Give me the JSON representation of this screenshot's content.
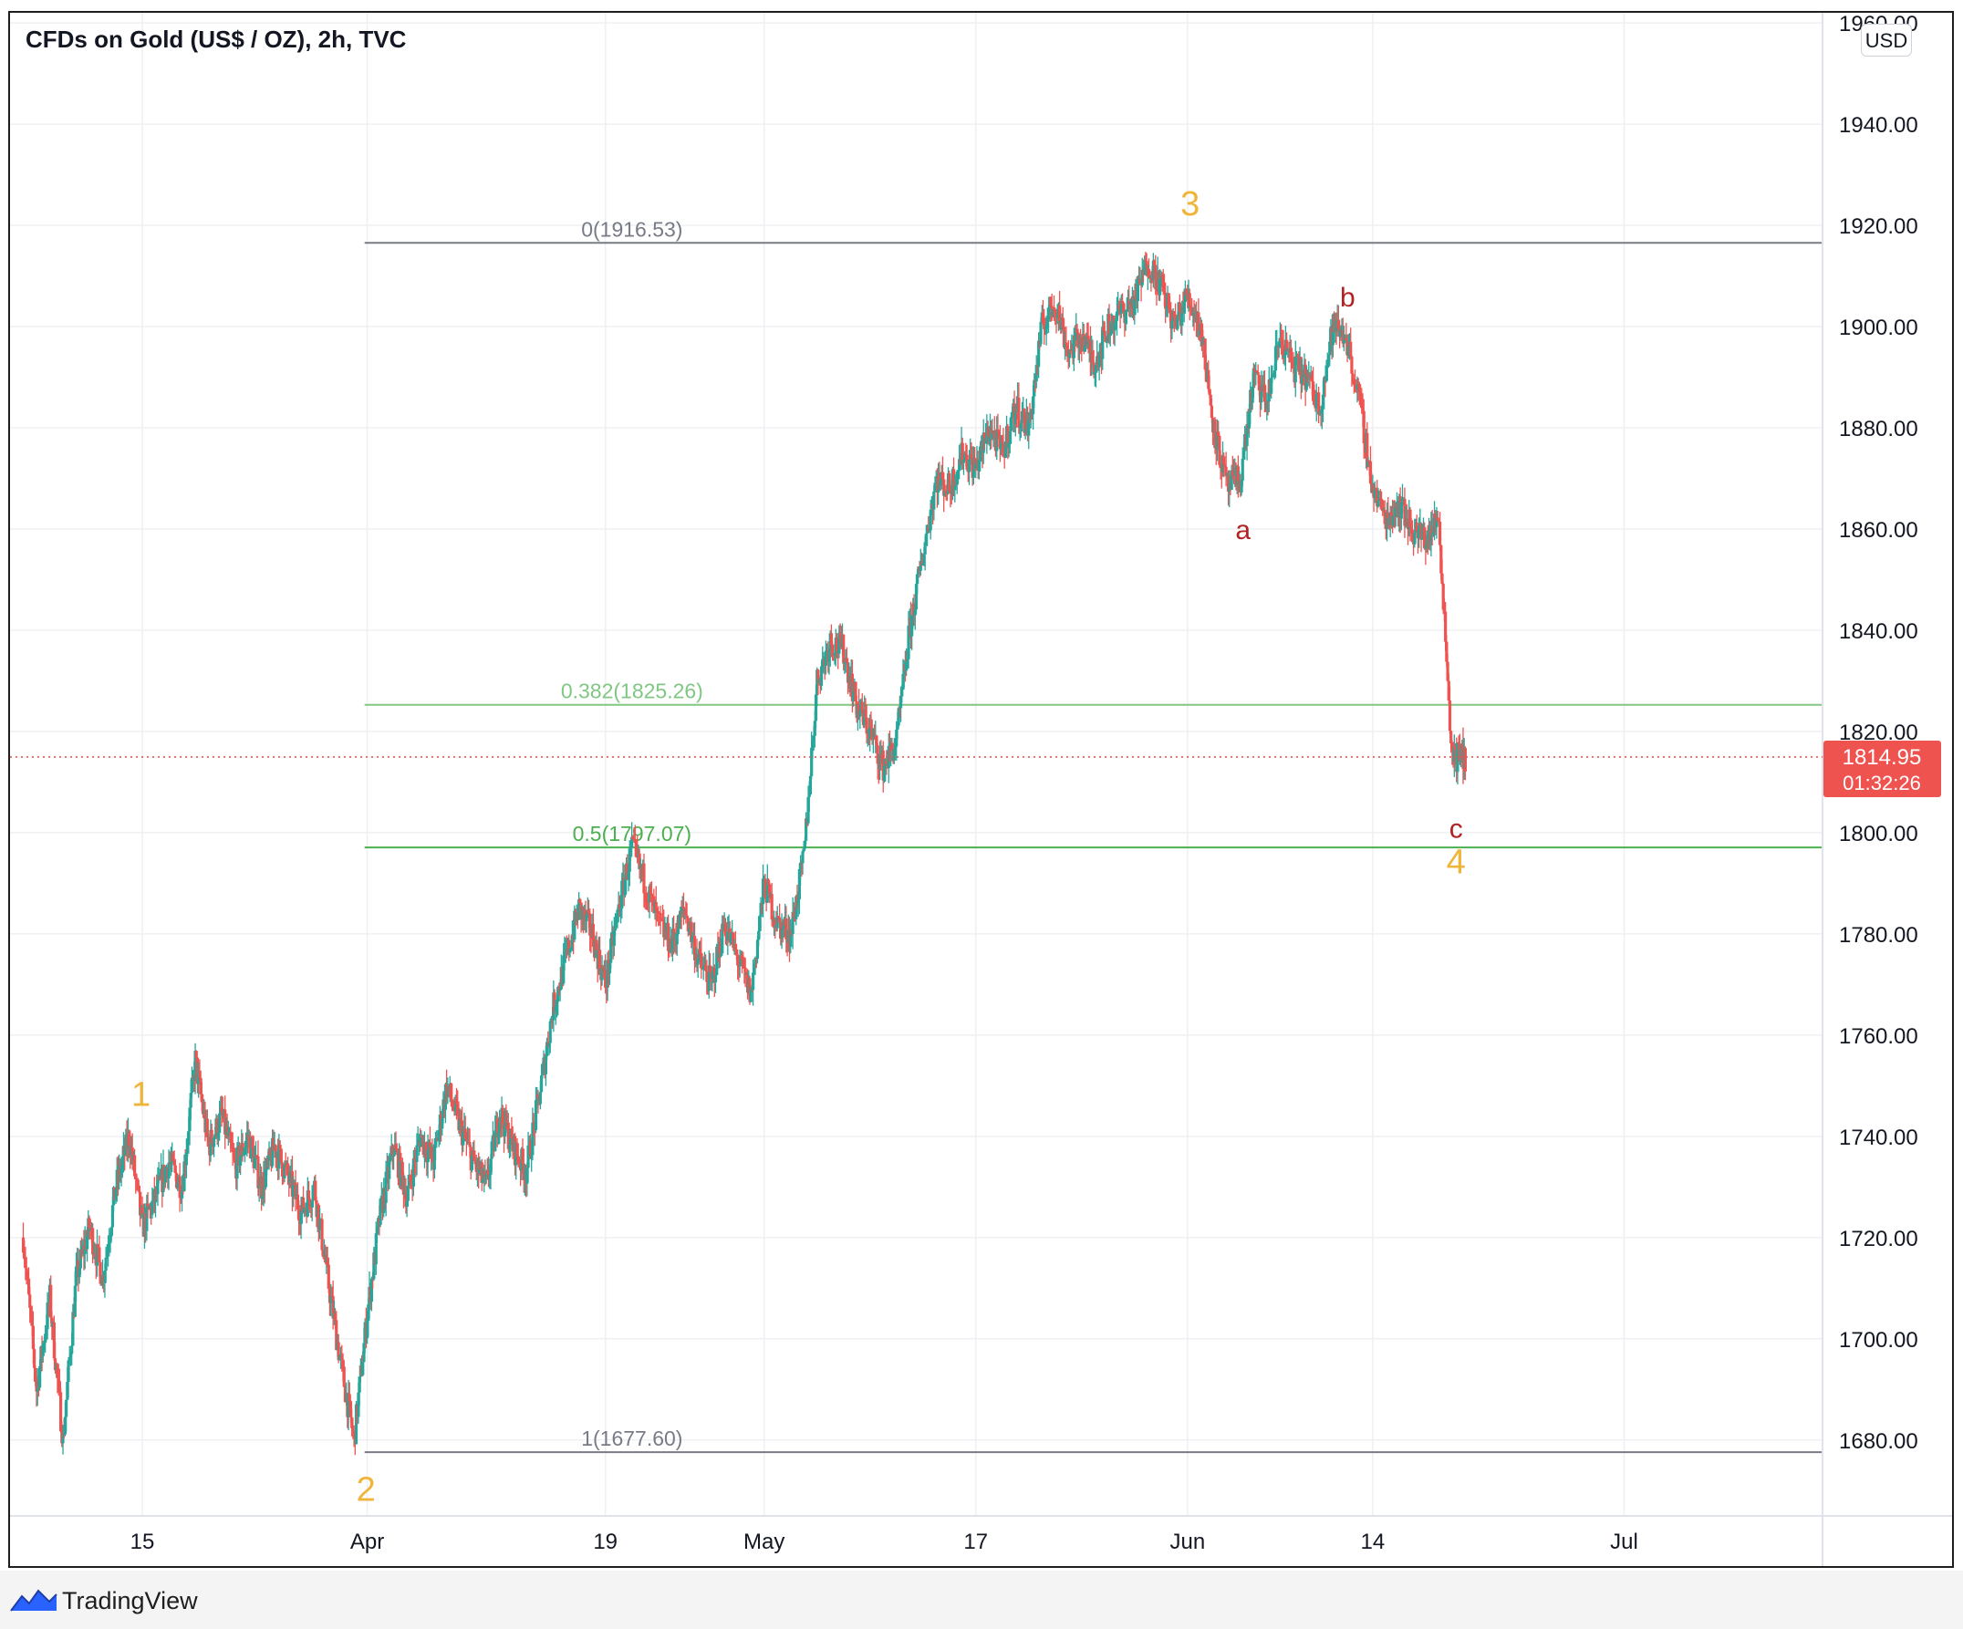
{
  "header": {
    "title": "CFDs on Gold (US$ / OZ), 2h, TVC",
    "currency_button": "USD"
  },
  "footer": {
    "brand": "TradingView"
  },
  "colors": {
    "up": "#26a69a",
    "down": "#ef5350",
    "fib_gray": "#787b86",
    "fib_382": "#81c784",
    "fib_05": "#4caf50",
    "wave_major": "#f0b43a",
    "wave_minor": "#b22222",
    "price_tag": "#ef5350",
    "grid": "#eef0f3"
  },
  "chart_data": {
    "type": "candlestick",
    "title": "CFDs on Gold (US$ / OZ), 2h, TVC",
    "ylim": [
      1665,
      1962
    ],
    "y_ticks": [
      "1680.00",
      "1700.00",
      "1720.00",
      "1740.00",
      "1760.00",
      "1780.00",
      "1800.00",
      "1820.00",
      "1840.00",
      "1860.00",
      "1880.00",
      "1900.00",
      "1920.00",
      "1940.00",
      "1960.00"
    ],
    "x_ticks": [
      "15",
      "Apr",
      "19",
      "May",
      "17",
      "Jun",
      "14",
      "Jul"
    ],
    "x_tick_days": [
      14,
      31,
      49,
      61,
      77,
      93,
      107,
      126
    ],
    "x_range_days": [
      4,
      141
    ],
    "grid": true,
    "price_path": [
      [
        5,
        1720
      ],
      [
        6,
        1690
      ],
      [
        7,
        1708
      ],
      [
        8,
        1680
      ],
      [
        9,
        1712
      ],
      [
        10,
        1722
      ],
      [
        11,
        1712
      ],
      [
        12,
        1730
      ],
      [
        13,
        1740
      ],
      [
        14,
        1722
      ],
      [
        15,
        1728
      ],
      [
        16,
        1735
      ],
      [
        17,
        1730
      ],
      [
        18,
        1755
      ],
      [
        19,
        1738
      ],
      [
        20,
        1744
      ],
      [
        21,
        1734
      ],
      [
        22,
        1740
      ],
      [
        23,
        1730
      ],
      [
        24,
        1738
      ],
      [
        25,
        1732
      ],
      [
        26,
        1725
      ],
      [
        27,
        1730
      ],
      [
        28,
        1712
      ],
      [
        29,
        1695
      ],
      [
        30,
        1680
      ],
      [
        31,
        1705
      ],
      [
        32,
        1725
      ],
      [
        33,
        1738
      ],
      [
        34,
        1728
      ],
      [
        35,
        1740
      ],
      [
        36,
        1735
      ],
      [
        37,
        1750
      ],
      [
        38,
        1742
      ],
      [
        39,
        1735
      ],
      [
        40,
        1730
      ],
      [
        41,
        1745
      ],
      [
        42,
        1738
      ],
      [
        43,
        1733
      ],
      [
        44,
        1748
      ],
      [
        45,
        1765
      ],
      [
        46,
        1775
      ],
      [
        47,
        1785
      ],
      [
        48,
        1780
      ],
      [
        49,
        1770
      ],
      [
        50,
        1785
      ],
      [
        51,
        1797
      ],
      [
        52,
        1790
      ],
      [
        53,
        1782
      ],
      [
        54,
        1778
      ],
      [
        55,
        1785
      ],
      [
        56,
        1775
      ],
      [
        57,
        1770
      ],
      [
        58,
        1782
      ],
      [
        59,
        1775
      ],
      [
        60,
        1768
      ],
      [
        61,
        1790
      ],
      [
        62,
        1782
      ],
      [
        63,
        1780
      ],
      [
        64,
        1795
      ],
      [
        65,
        1830
      ],
      [
        66,
        1838
      ],
      [
        67,
        1836
      ],
      [
        68,
        1825
      ],
      [
        69,
        1820
      ],
      [
        70,
        1813
      ],
      [
        71,
        1818
      ],
      [
        72,
        1840
      ],
      [
        73,
        1855
      ],
      [
        74,
        1870
      ],
      [
        75,
        1868
      ],
      [
        76,
        1875
      ],
      [
        77,
        1872
      ],
      [
        78,
        1880
      ],
      [
        79,
        1875
      ],
      [
        80,
        1884
      ],
      [
        81,
        1880
      ],
      [
        82,
        1900
      ],
      [
        83,
        1905
      ],
      [
        84,
        1895
      ],
      [
        85,
        1898
      ],
      [
        86,
        1893
      ],
      [
        87,
        1900
      ],
      [
        88,
        1903
      ],
      [
        89,
        1905
      ],
      [
        90,
        1913
      ],
      [
        91,
        1908
      ],
      [
        92,
        1900
      ],
      [
        93,
        1906
      ],
      [
        94,
        1900
      ],
      [
        95,
        1880
      ],
      [
        96,
        1868
      ],
      [
        97,
        1870
      ],
      [
        98,
        1890
      ],
      [
        99,
        1885
      ],
      [
        100,
        1898
      ],
      [
        101,
        1892
      ],
      [
        102,
        1890
      ],
      [
        103,
        1884
      ],
      [
        104,
        1900
      ],
      [
        105,
        1898
      ],
      [
        106,
        1885
      ],
      [
        107,
        1868
      ],
      [
        108,
        1862
      ],
      [
        109,
        1865
      ],
      [
        110,
        1860
      ],
      [
        111,
        1858
      ],
      [
        112,
        1862
      ],
      [
        113,
        1815
      ],
      [
        114,
        1814.95
      ]
    ],
    "last_price": {
      "value": "1814.95",
      "countdown": "01:32:26",
      "price": 1814.95
    },
    "fibonacci": {
      "x_start_day": 30.8,
      "levels": [
        {
          "label": "0(1916.53)",
          "price": 1916.53
        },
        {
          "label": "0.382(1825.26)",
          "price": 1825.26
        },
        {
          "label": "0.5(1797.07)",
          "price": 1797.07
        },
        {
          "label": "1(1677.60)",
          "price": 1677.6
        }
      ]
    },
    "annotations": [
      {
        "text": "1",
        "day": 13.9,
        "price": 1746,
        "kind": "major"
      },
      {
        "text": "2",
        "day": 30.9,
        "price": 1668,
        "kind": "major"
      },
      {
        "text": "3",
        "day": 93.2,
        "price": 1922,
        "kind": "major"
      },
      {
        "text": "a",
        "day": 97.2,
        "price": 1858,
        "kind": "minor"
      },
      {
        "text": "b",
        "day": 105.1,
        "price": 1904,
        "kind": "minor"
      },
      {
        "text": "c",
        "day": 113.3,
        "price": 1799,
        "kind": "minor"
      },
      {
        "text": "4",
        "day": 113.3,
        "price": 1792,
        "kind": "major"
      }
    ]
  }
}
